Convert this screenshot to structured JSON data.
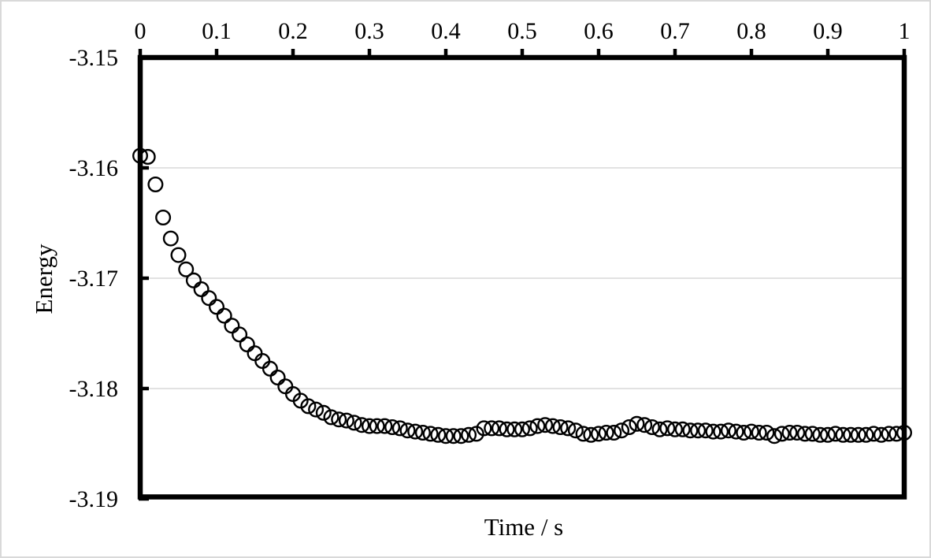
{
  "figure": {
    "background_color": "#ffffff",
    "canvas_border_color": "#d9d9d9",
    "axis_color": "#000000",
    "gridline_color": "#d9d9d9",
    "text_color": "#000000"
  },
  "chart_data": {
    "type": "scatter",
    "title": "",
    "xlabel": "Time / s",
    "ylabel": "Energy",
    "xlim": [
      0,
      1
    ],
    "ylim": [
      -3.19,
      -3.15
    ],
    "x_axis_position": "top",
    "grid": "horizontal",
    "legend": "none",
    "marker": {
      "shape": "open-circle",
      "stroke_color": "#000000",
      "fill": "none"
    },
    "x_ticks": [
      0,
      0.1,
      0.2,
      0.3,
      0.4,
      0.5,
      0.6,
      0.7,
      0.8,
      0.9,
      1
    ],
    "x_tick_labels": [
      "0",
      "0.1",
      "0.2",
      "0.3",
      "0.4",
      "0.5",
      "0.6",
      "0.7",
      "0.8",
      "0.9",
      "1"
    ],
    "y_ticks": [
      -3.15,
      -3.16,
      -3.17,
      -3.18,
      -3.19
    ],
    "y_tick_labels": [
      "-3.15",
      "-3.16",
      "-3.17",
      "-3.18",
      "-3.19"
    ],
    "series": [
      {
        "name": "Energy",
        "x": [
          0.0,
          0.01,
          0.02,
          0.03,
          0.04,
          0.05,
          0.06,
          0.07,
          0.08,
          0.09,
          0.1,
          0.11,
          0.12,
          0.13,
          0.14,
          0.15,
          0.16,
          0.17,
          0.18,
          0.19,
          0.2,
          0.21,
          0.22,
          0.23,
          0.24,
          0.25,
          0.26,
          0.27,
          0.28,
          0.29,
          0.3,
          0.31,
          0.32,
          0.33,
          0.34,
          0.35,
          0.36,
          0.37,
          0.38,
          0.39,
          0.4,
          0.41,
          0.42,
          0.43,
          0.44,
          0.45,
          0.46,
          0.47,
          0.48,
          0.49,
          0.5,
          0.51,
          0.52,
          0.53,
          0.54,
          0.55,
          0.56,
          0.57,
          0.58,
          0.59,
          0.6,
          0.61,
          0.62,
          0.63,
          0.64,
          0.65,
          0.66,
          0.67,
          0.68,
          0.69,
          0.7,
          0.71,
          0.72,
          0.73,
          0.74,
          0.75,
          0.76,
          0.77,
          0.78,
          0.79,
          0.8,
          0.81,
          0.82,
          0.83,
          0.84,
          0.85,
          0.86,
          0.87,
          0.88,
          0.89,
          0.9,
          0.91,
          0.92,
          0.93,
          0.94,
          0.95,
          0.96,
          0.97,
          0.98,
          0.99,
          1.0
        ],
        "y": [
          -3.1589,
          -3.159,
          -3.1615,
          -3.1645,
          -3.1664,
          -3.1679,
          -3.1692,
          -3.1702,
          -3.171,
          -3.1718,
          -3.1726,
          -3.1734,
          -3.1743,
          -3.1751,
          -3.176,
          -3.1768,
          -3.1775,
          -3.1782,
          -3.179,
          -3.1798,
          -3.1805,
          -3.1811,
          -3.1816,
          -3.1819,
          -3.1822,
          -3.1826,
          -3.1828,
          -3.1829,
          -3.1831,
          -3.1833,
          -3.1834,
          -3.1834,
          -3.1834,
          -3.1835,
          -3.1836,
          -3.1838,
          -3.1839,
          -3.184,
          -3.1841,
          -3.1842,
          -3.1843,
          -3.1843,
          -3.1843,
          -3.1842,
          -3.1841,
          -3.1836,
          -3.1836,
          -3.1836,
          -3.1837,
          -3.1837,
          -3.1837,
          -3.1836,
          -3.1834,
          -3.1833,
          -3.1834,
          -3.1835,
          -3.1836,
          -3.1838,
          -3.1841,
          -3.1842,
          -3.1841,
          -3.184,
          -3.184,
          -3.1838,
          -3.1835,
          -3.1832,
          -3.1833,
          -3.1835,
          -3.1837,
          -3.1836,
          -3.1837,
          -3.1837,
          -3.1838,
          -3.1838,
          -3.1838,
          -3.1839,
          -3.1839,
          -3.1838,
          -3.1839,
          -3.184,
          -3.1839,
          -3.184,
          -3.184,
          -3.1843,
          -3.1841,
          -3.184,
          -3.184,
          -3.1841,
          -3.1841,
          -3.1842,
          -3.1842,
          -3.1841,
          -3.1842,
          -3.1842,
          -3.1842,
          -3.1842,
          -3.1841,
          -3.1842,
          -3.1841,
          -3.1841,
          -3.184
        ]
      }
    ]
  }
}
